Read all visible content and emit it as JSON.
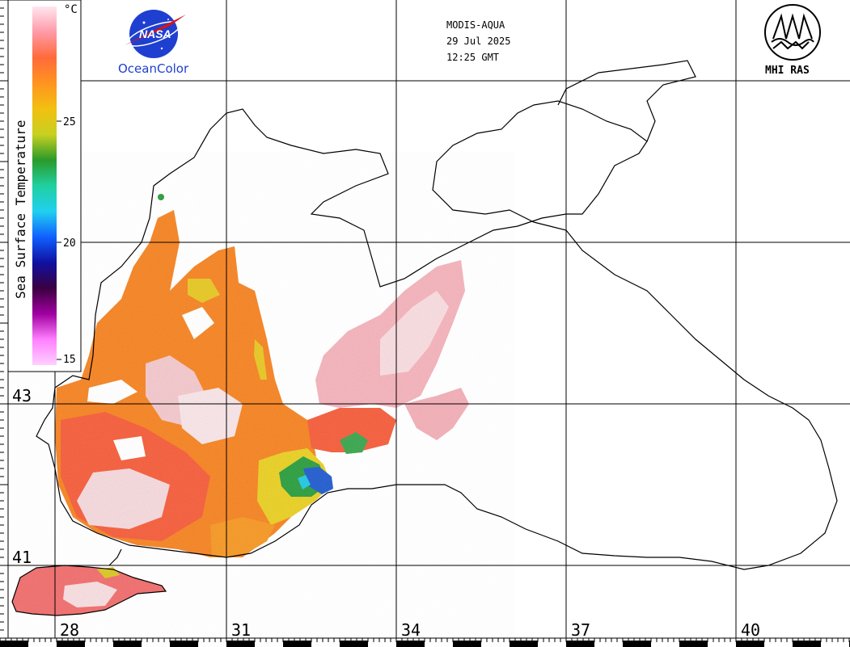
{
  "header": {
    "sensor": "MODIS-AQUA",
    "date": "29 Jul 2025",
    "time": "12:25 GMT"
  },
  "logos": {
    "nasa_text": "NASA",
    "oceancolor": "OceanColor",
    "mhi": "MHI RAS"
  },
  "colorbar": {
    "title": "Sea Surface Temperature",
    "unit": "°C",
    "ticks": [
      "25",
      "20",
      "15"
    ],
    "colors": [
      "#ffe6f0",
      "#ff9aa8",
      "#ff6a3a",
      "#ff9420",
      "#f2c010",
      "#c8d020",
      "#2a9a2a",
      "#20d0a0",
      "#20d0f0",
      "#1060ff",
      "#1010a0",
      "#3a0040",
      "#a000a0",
      "#ff80ff",
      "#ffd0ff"
    ]
  },
  "axes": {
    "latitudes": [
      "43",
      "41"
    ],
    "longitudes": [
      "28",
      "31",
      "34",
      "37",
      "40"
    ]
  },
  "sst_colors": {
    "white_pink": "#f2d6dc",
    "pink": "#f08c9a",
    "red_orange": "#f4603c",
    "orange": "#f5861e",
    "yellow": "#e8d020",
    "green": "#2aa040",
    "blue": "#1e5fd0"
  }
}
